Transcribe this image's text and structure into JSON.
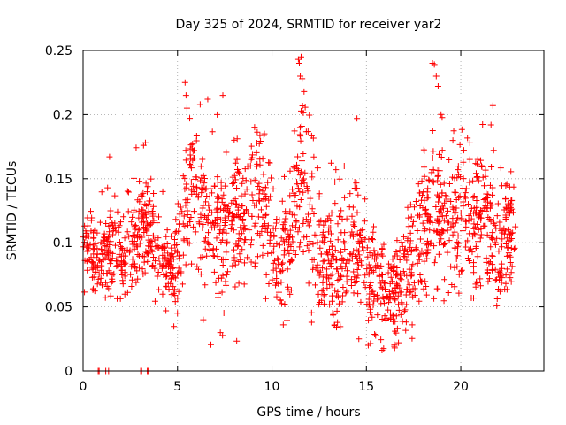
{
  "chart_data": {
    "type": "scatter",
    "title": "Day 325 of 2024, SRMTID for receiver yar2",
    "xlabel": "GPS time / hours",
    "ylabel": "SRMTID / TECUs",
    "xlim": [
      0,
      24.4
    ],
    "ylim": [
      0,
      0.25
    ],
    "x_ticks": [
      0,
      5,
      10,
      15,
      20
    ],
    "x_tick_labels": [
      "0",
      "5",
      "10",
      "15",
      "20"
    ],
    "y_ticks": [
      0,
      0.05,
      0.1,
      0.15,
      0.2,
      0.25
    ],
    "y_tick_labels": [
      "0",
      "0.05",
      "0.1",
      "0.15",
      "0.2",
      "0.25"
    ],
    "grid": true,
    "marker": "+",
    "color": "#ff0000",
    "series_name": "yar2",
    "profile": [
      {
        "t": 0.0,
        "m": 0.1,
        "s": 0.012
      },
      {
        "t": 0.8,
        "m": 0.085,
        "s": 0.015
      },
      {
        "t": 1.5,
        "m": 0.1,
        "s": 0.022
      },
      {
        "t": 2.3,
        "m": 0.09,
        "s": 0.02
      },
      {
        "t": 3.0,
        "m": 0.115,
        "s": 0.02
      },
      {
        "t": 3.8,
        "m": 0.1,
        "s": 0.02
      },
      {
        "t": 4.3,
        "m": 0.08,
        "s": 0.015
      },
      {
        "t": 5.0,
        "m": 0.09,
        "s": 0.02
      },
      {
        "t": 5.6,
        "m": 0.145,
        "s": 0.03
      },
      {
        "t": 6.5,
        "m": 0.115,
        "s": 0.03
      },
      {
        "t": 7.5,
        "m": 0.105,
        "s": 0.03
      },
      {
        "t": 8.5,
        "m": 0.12,
        "s": 0.025
      },
      {
        "t": 9.5,
        "m": 0.14,
        "s": 0.025
      },
      {
        "t": 10.3,
        "m": 0.085,
        "s": 0.02
      },
      {
        "t": 11.0,
        "m": 0.1,
        "s": 0.025
      },
      {
        "t": 11.5,
        "m": 0.16,
        "s": 0.04
      },
      {
        "t": 12.5,
        "m": 0.09,
        "s": 0.025
      },
      {
        "t": 13.5,
        "m": 0.08,
        "s": 0.025
      },
      {
        "t": 14.5,
        "m": 0.095,
        "s": 0.03
      },
      {
        "t": 15.5,
        "m": 0.07,
        "s": 0.02
      },
      {
        "t": 16.5,
        "m": 0.06,
        "s": 0.02
      },
      {
        "t": 17.5,
        "m": 0.09,
        "s": 0.025
      },
      {
        "t": 18.5,
        "m": 0.13,
        "s": 0.035
      },
      {
        "t": 19.5,
        "m": 0.11,
        "s": 0.03
      },
      {
        "t": 20.5,
        "m": 0.12,
        "s": 0.03
      },
      {
        "t": 21.5,
        "m": 0.115,
        "s": 0.03
      },
      {
        "t": 22.0,
        "m": 0.09,
        "s": 0.025
      },
      {
        "t": 22.8,
        "m": 0.11,
        "s": 0.025
      }
    ],
    "time_range": [
      0.0,
      22.9
    ],
    "point_count": 1800,
    "peaks": [
      {
        "x": 5.4,
        "y": 0.225
      },
      {
        "x": 5.45,
        "y": 0.215
      },
      {
        "x": 5.5,
        "y": 0.205
      },
      {
        "x": 6.2,
        "y": 0.208
      },
      {
        "x": 6.6,
        "y": 0.212
      },
      {
        "x": 7.1,
        "y": 0.2
      },
      {
        "x": 7.4,
        "y": 0.215
      },
      {
        "x": 8.0,
        "y": 0.18
      },
      {
        "x": 9.6,
        "y": 0.185
      },
      {
        "x": 11.4,
        "y": 0.243
      },
      {
        "x": 11.45,
        "y": 0.24
      },
      {
        "x": 11.5,
        "y": 0.23
      },
      {
        "x": 11.6,
        "y": 0.228
      },
      {
        "x": 11.7,
        "y": 0.218
      },
      {
        "x": 14.5,
        "y": 0.197
      },
      {
        "x": 18.5,
        "y": 0.24
      },
      {
        "x": 18.6,
        "y": 0.239
      },
      {
        "x": 18.7,
        "y": 0.23
      },
      {
        "x": 18.8,
        "y": 0.222
      },
      {
        "x": 21.7,
        "y": 0.207
      },
      {
        "x": 21.6,
        "y": 0.192
      },
      {
        "x": 3.3,
        "y": 0.178
      },
      {
        "x": 1.4,
        "y": 0.167
      },
      {
        "x": 3.2,
        "y": 0.176
      }
    ],
    "lows": [
      {
        "x": 15.1,
        "y": 0.02
      },
      {
        "x": 16.5,
        "y": 0.018
      },
      {
        "x": 16.7,
        "y": 0.022
      },
      {
        "x": 14.6,
        "y": 0.025
      },
      {
        "x": 10.6,
        "y": 0.036
      },
      {
        "x": 12.1,
        "y": 0.038
      }
    ],
    "zeros": [
      {
        "x": 0.8,
        "y": 0
      },
      {
        "x": 0.85,
        "y": 0
      },
      {
        "x": 1.2,
        "y": 0
      },
      {
        "x": 1.35,
        "y": 0
      },
      {
        "x": 3.05,
        "y": 0
      },
      {
        "x": 3.1,
        "y": 0
      },
      {
        "x": 3.4,
        "y": 0
      },
      {
        "x": 3.45,
        "y": 0
      }
    ]
  }
}
